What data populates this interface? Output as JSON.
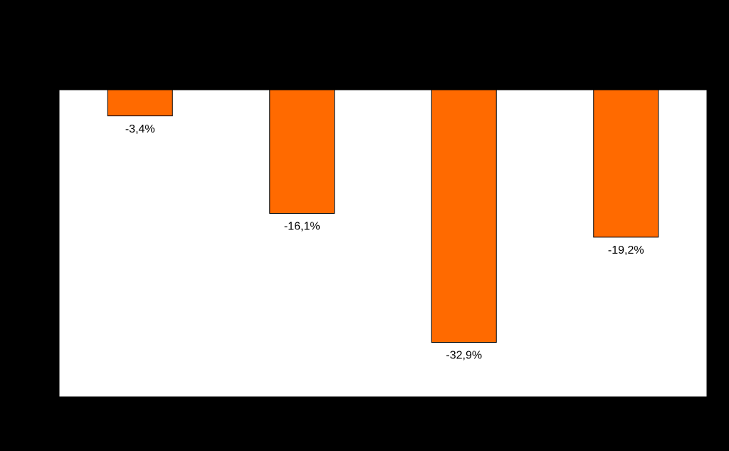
{
  "chart_data": {
    "type": "bar",
    "categories": [
      null,
      null,
      null,
      null
    ],
    "values": [
      -3.4,
      -16.1,
      -32.9,
      -19.2
    ],
    "value_labels": [
      "-3,4%",
      "-16,1%",
      "-32,9%",
      "-19,2%"
    ],
    "color": "#ff6a00",
    "ylim": [
      -40,
      0
    ]
  }
}
